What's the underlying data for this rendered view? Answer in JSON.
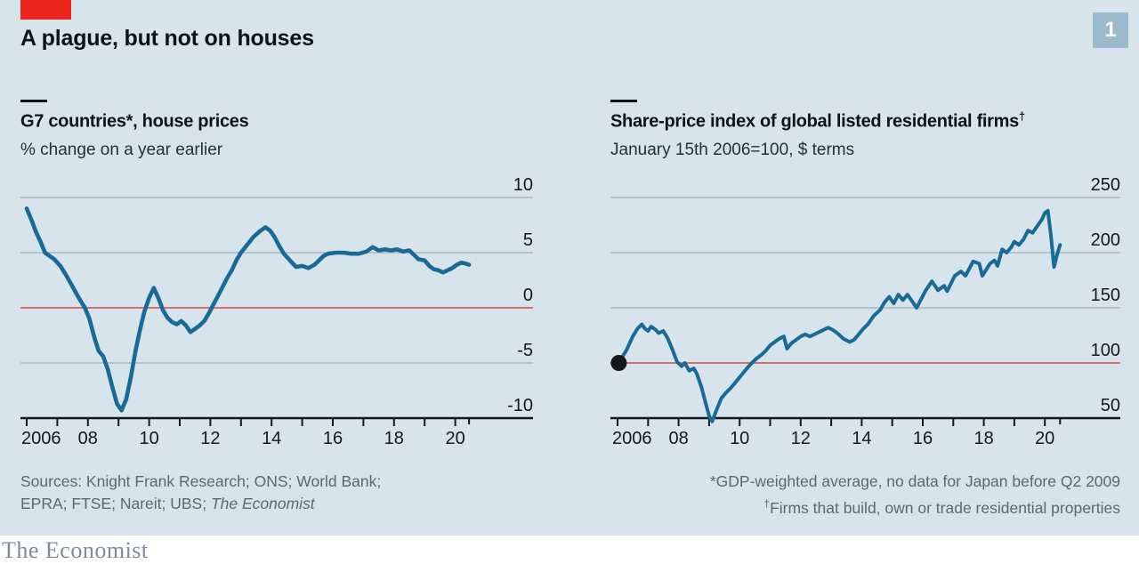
{
  "header": {
    "title": "A plague, but not on houses",
    "badge": "1"
  },
  "colors": {
    "background": "#D7E4EC",
    "brand_red_tab": "#E9251D",
    "line_blue": "#196B95",
    "baseline_red": "#D6605C",
    "gridline": "#A9B6BD",
    "axis": "#13181C",
    "badge_bg": "#9BBACB",
    "badge_text": "#FFFFFF",
    "muted_text": "#5A6870",
    "logo_text": "#7E8D98",
    "marker_dot": "#16191C"
  },
  "footer": {
    "sources_line1": "Sources: Knight Frank Research; ONS; World Bank;",
    "sources_line2": "EPRA; FTSE; Nareit; UBS; ",
    "sources_line2_italic": "The Economist",
    "footnote_1": "*GDP-weighted average, no data for Japan before Q2 2009",
    "footnote_2_sup": "†",
    "footnote_2": "Firms that build, own or trade residential properties",
    "logo": "The Economist"
  },
  "chart_data": [
    {
      "type": "line",
      "title": "G7 countries*, house prices",
      "title_sup": "",
      "subtitle": "% change on a year earlier",
      "xlabel": "",
      "ylabel": "% change on a year earlier",
      "ylim": [
        -10,
        10
      ],
      "xlim": [
        2006,
        2020.6
      ],
      "grid": true,
      "legend": "none",
      "baseline_value": 0,
      "y_ticks": [
        10,
        5,
        0,
        -5,
        -10
      ],
      "x_tick_years": [
        2006,
        2007,
        2008,
        2009,
        2010,
        2011,
        2012,
        2013,
        2014,
        2015,
        2016,
        2017,
        2018,
        2019,
        2020
      ],
      "x_tick_labels": [
        {
          "year": 2006,
          "label": "2006",
          "align": "start"
        },
        {
          "year": 2008,
          "label": "08",
          "align": "middle"
        },
        {
          "year": 2010,
          "label": "10",
          "align": "middle"
        },
        {
          "year": 2012,
          "label": "12",
          "align": "middle"
        },
        {
          "year": 2014,
          "label": "14",
          "align": "middle"
        },
        {
          "year": 2016,
          "label": "16",
          "align": "middle"
        },
        {
          "year": 2018,
          "label": "18",
          "align": "middle"
        },
        {
          "year": 2020,
          "label": "20",
          "align": "middle"
        }
      ],
      "series": [
        {
          "name": "G7 house prices, % change on a year earlier",
          "x": [
            2006.0,
            2006.15,
            2006.3,
            2006.45,
            2006.6,
            2006.75,
            2006.9,
            2007.1,
            2007.3,
            2007.5,
            2007.7,
            2007.9,
            2008.05,
            2008.2,
            2008.35,
            2008.5,
            2008.65,
            2008.8,
            2008.95,
            2009.1,
            2009.25,
            2009.4,
            2009.55,
            2009.7,
            2009.85,
            2010.0,
            2010.15,
            2010.3,
            2010.45,
            2010.6,
            2010.75,
            2010.9,
            2011.05,
            2011.2,
            2011.35,
            2011.5,
            2011.65,
            2011.8,
            2011.95,
            2012.1,
            2012.25,
            2012.4,
            2012.55,
            2012.7,
            2012.85,
            2013.0,
            2013.2,
            2013.4,
            2013.6,
            2013.8,
            2013.95,
            2014.1,
            2014.25,
            2014.4,
            2014.6,
            2014.8,
            2015.0,
            2015.2,
            2015.4,
            2015.55,
            2015.7,
            2015.85,
            2016.1,
            2016.35,
            2016.6,
            2016.85,
            2017.1,
            2017.3,
            2017.5,
            2017.7,
            2017.9,
            2018.1,
            2018.3,
            2018.5,
            2018.65,
            2018.8,
            2019.0,
            2019.15,
            2019.3,
            2019.45,
            2019.6,
            2019.75,
            2019.9,
            2020.05,
            2020.2,
            2020.35,
            2020.45
          ],
          "y": [
            9.0,
            8.0,
            6.9,
            6.0,
            5.0,
            4.7,
            4.4,
            3.8,
            2.9,
            1.9,
            0.9,
            0.0,
            -1.0,
            -2.6,
            -3.9,
            -4.4,
            -5.6,
            -7.2,
            -8.7,
            -9.3,
            -8.3,
            -6.3,
            -4.0,
            -2.0,
            -0.3,
            0.9,
            1.8,
            0.9,
            -0.2,
            -0.9,
            -1.3,
            -1.5,
            -1.2,
            -1.6,
            -2.2,
            -1.9,
            -1.6,
            -1.2,
            -0.5,
            0.3,
            1.1,
            1.9,
            2.7,
            3.4,
            4.3,
            5.0,
            5.7,
            6.4,
            6.9,
            7.3,
            7.0,
            6.4,
            5.6,
            4.9,
            4.3,
            3.7,
            3.8,
            3.6,
            3.9,
            4.3,
            4.7,
            4.9,
            5.0,
            5.0,
            4.9,
            4.9,
            5.1,
            5.5,
            5.2,
            5.3,
            5.2,
            5.3,
            5.1,
            5.2,
            4.8,
            4.4,
            4.3,
            3.8,
            3.5,
            3.4,
            3.2,
            3.4,
            3.6,
            3.9,
            4.1,
            4.0,
            3.9
          ]
        }
      ]
    },
    {
      "type": "line",
      "title": "Share-price index of global listed residential firms",
      "title_sup": "†",
      "subtitle": "January 15th 2006=100, $ terms",
      "xlabel": "",
      "ylabel": "Index, January 15th 2006=100, $ terms",
      "ylim": [
        50,
        250
      ],
      "xlim": [
        2006,
        2020.6
      ],
      "grid": true,
      "legend": "none",
      "baseline_value": 100,
      "start_marker": {
        "x": 2006.04,
        "y": 100
      },
      "y_ticks": [
        250,
        200,
        150,
        100,
        50
      ],
      "x_tick_years": [
        2006,
        2007,
        2008,
        2009,
        2010,
        2011,
        2012,
        2013,
        2014,
        2015,
        2016,
        2017,
        2018,
        2019,
        2020
      ],
      "x_tick_labels": [
        {
          "year": 2006,
          "label": "2006",
          "align": "start"
        },
        {
          "year": 2008,
          "label": "08",
          "align": "middle"
        },
        {
          "year": 2010,
          "label": "10",
          "align": "middle"
        },
        {
          "year": 2012,
          "label": "12",
          "align": "middle"
        },
        {
          "year": 2014,
          "label": "14",
          "align": "middle"
        },
        {
          "year": 2016,
          "label": "16",
          "align": "middle"
        },
        {
          "year": 2018,
          "label": "18",
          "align": "middle"
        },
        {
          "year": 2020,
          "label": "20",
          "align": "middle"
        }
      ],
      "series": [
        {
          "name": "Share-price index of global listed residential firms",
          "x": [
            2006.04,
            2006.15,
            2006.3,
            2006.5,
            2006.65,
            2006.8,
            2006.9,
            2007.0,
            2007.1,
            2007.25,
            2007.35,
            2007.5,
            2007.65,
            2007.8,
            2007.95,
            2008.1,
            2008.2,
            2008.35,
            2008.5,
            2008.6,
            2008.75,
            2008.9,
            2009.0,
            2009.1,
            2009.25,
            2009.4,
            2009.55,
            2009.7,
            2009.85,
            2010.0,
            2010.15,
            2010.3,
            2010.4,
            2010.55,
            2010.7,
            2010.85,
            2011.0,
            2011.15,
            2011.3,
            2011.45,
            2011.55,
            2011.7,
            2011.85,
            2012.0,
            2012.15,
            2012.3,
            2012.45,
            2012.6,
            2012.75,
            2012.9,
            2013.05,
            2013.2,
            2013.4,
            2013.6,
            2013.75,
            2013.9,
            2014.05,
            2014.2,
            2014.4,
            2014.6,
            2014.75,
            2014.9,
            2015.05,
            2015.2,
            2015.35,
            2015.5,
            2015.65,
            2015.8,
            2015.95,
            2016.1,
            2016.3,
            2016.5,
            2016.7,
            2016.8,
            2017.05,
            2017.25,
            2017.4,
            2017.65,
            2017.85,
            2017.95,
            2018.2,
            2018.35,
            2018.45,
            2018.6,
            2018.75,
            2018.9,
            2019.0,
            2019.15,
            2019.3,
            2019.45,
            2019.6,
            2019.75,
            2019.9,
            2020.0,
            2020.1,
            2020.2,
            2020.3,
            2020.4,
            2020.5
          ],
          "y": [
            100,
            105,
            112,
            124,
            131,
            135,
            131,
            129,
            133,
            130,
            127,
            129,
            122,
            112,
            101,
            97,
            100,
            93,
            95,
            90,
            78,
            62,
            52,
            47,
            58,
            68,
            73,
            77,
            82,
            87,
            92,
            97,
            100,
            104,
            107,
            111,
            116,
            119,
            122,
            124,
            113,
            118,
            121,
            124,
            126,
            124,
            126,
            128,
            130,
            132,
            130,
            127,
            122,
            119,
            121,
            126,
            131,
            135,
            143,
            148,
            155,
            160,
            154,
            162,
            157,
            162,
            156,
            150,
            158,
            166,
            174,
            166,
            170,
            165,
            179,
            183,
            179,
            192,
            190,
            179,
            190,
            193,
            188,
            203,
            200,
            205,
            210,
            207,
            212,
            220,
            218,
            224,
            230,
            236,
            238,
            215,
            187,
            198,
            207
          ]
        }
      ]
    }
  ]
}
